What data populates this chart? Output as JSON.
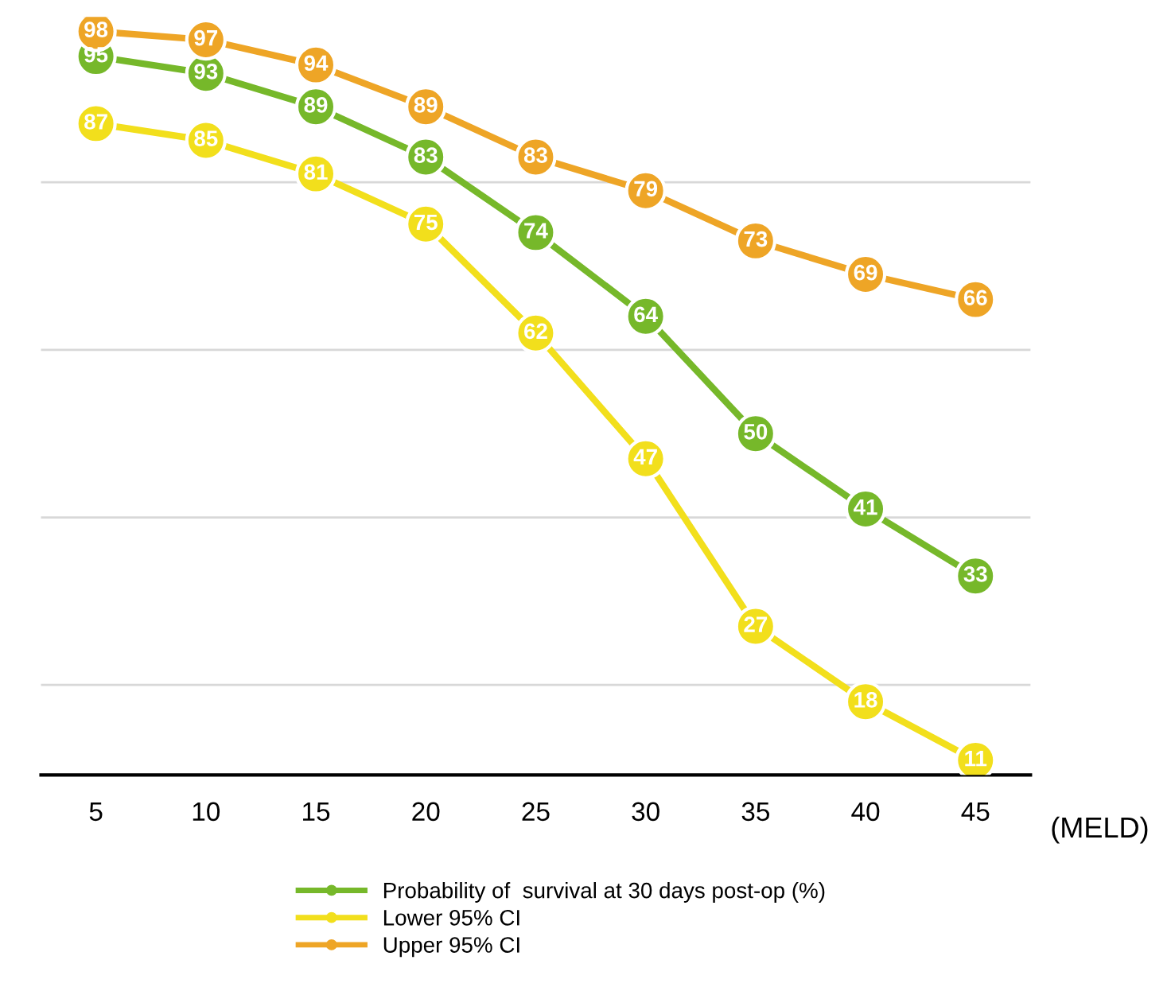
{
  "chart_data": {
    "type": "line",
    "xlabel": "(MELD)",
    "x": [
      5,
      10,
      15,
      20,
      25,
      30,
      35,
      40,
      45
    ],
    "series": [
      {
        "name": "Probability of  survival at 30 days post-op (%)",
        "color": "#76b82a",
        "values": [
          95,
          93,
          89,
          83,
          74,
          64,
          50,
          41,
          33
        ]
      },
      {
        "name": "Lower 95% CI",
        "color": "#f2df1c",
        "values": [
          87,
          85,
          81,
          75,
          62,
          47,
          27,
          18,
          11
        ]
      },
      {
        "name": "Upper 95% CI",
        "color": "#eea526",
        "values": [
          98,
          97,
          94,
          89,
          83,
          79,
          73,
          69,
          66
        ]
      }
    ],
    "xlim": [
      2.5,
      47.5
    ],
    "xticks": [
      5,
      10,
      15,
      20,
      25,
      30,
      35,
      40,
      45
    ],
    "tick_labels": "x",
    "grid": "y",
    "legend": "bottom",
    "marker": "circle",
    "line_style": "solid",
    "data_labels": true
  }
}
